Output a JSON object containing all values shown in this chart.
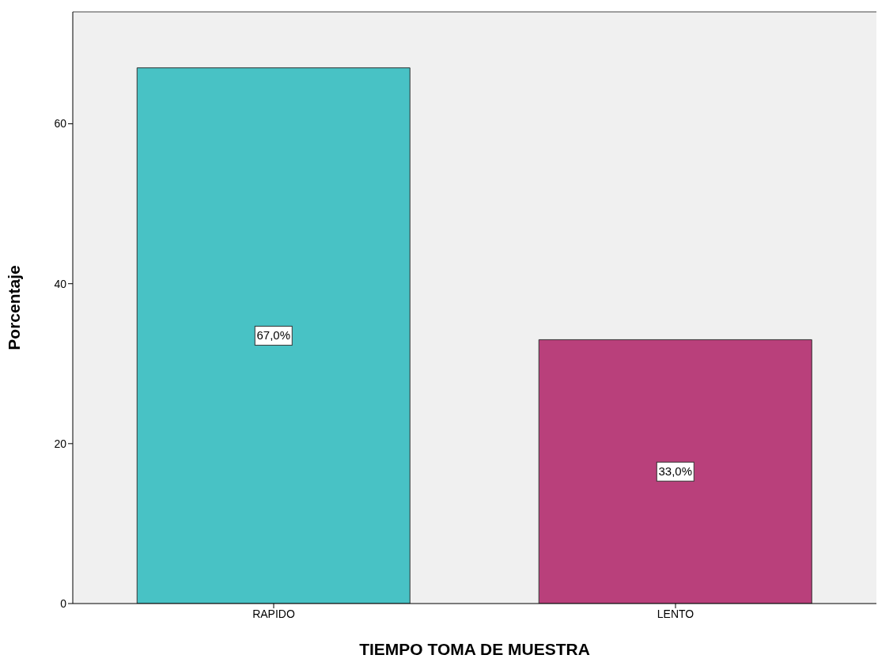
{
  "chart_data": {
    "type": "bar",
    "xlabel": "TIEMPO TOMA DE MUESTRA",
    "ylabel": "Porcentaje",
    "categories": [
      "RAPIDO",
      "LENTO"
    ],
    "values": [
      67.0,
      33.0
    ],
    "value_labels": [
      "67,0%",
      "33,0%"
    ],
    "colors": [
      "#48c2c5",
      "#b9407b"
    ],
    "ylim": [
      0,
      74
    ],
    "yticks": [
      0,
      20,
      40,
      60
    ]
  }
}
